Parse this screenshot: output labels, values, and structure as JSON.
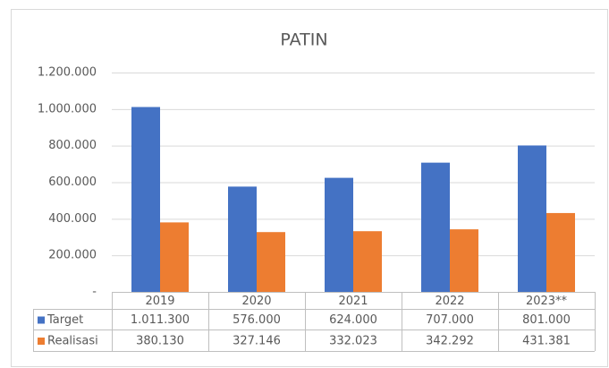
{
  "chart_data": {
    "type": "bar",
    "title": "PATIN",
    "categories": [
      "2019",
      "2020",
      "2021",
      "2022",
      "2023**"
    ],
    "series": [
      {
        "name": "Target",
        "color": "#4472c4",
        "values": [
          1011300,
          576000,
          624000,
          707000,
          801000
        ],
        "value_labels": [
          "1.011.300",
          "576.000",
          "624.000",
          "707.000",
          "801.000"
        ]
      },
      {
        "name": "Realisasi",
        "color": "#ed7d31",
        "values": [
          380130,
          327146,
          332023,
          342292,
          431381
        ],
        "value_labels": [
          "380.130",
          "327.146",
          "332.023",
          "342.292",
          "431.381"
        ]
      }
    ],
    "ylim": [
      0,
      1200000
    ],
    "yticks": [
      {
        "value": 0,
        "label": "-"
      },
      {
        "value": 200000,
        "label": "200.000"
      },
      {
        "value": 400000,
        "label": "400.000"
      },
      {
        "value": 600000,
        "label": "600.000"
      },
      {
        "value": 800000,
        "label": "800.000"
      },
      {
        "value": 1000000,
        "label": "1.000.000"
      },
      {
        "value": 1200000,
        "label": "1.200.000"
      }
    ],
    "grid": true
  }
}
